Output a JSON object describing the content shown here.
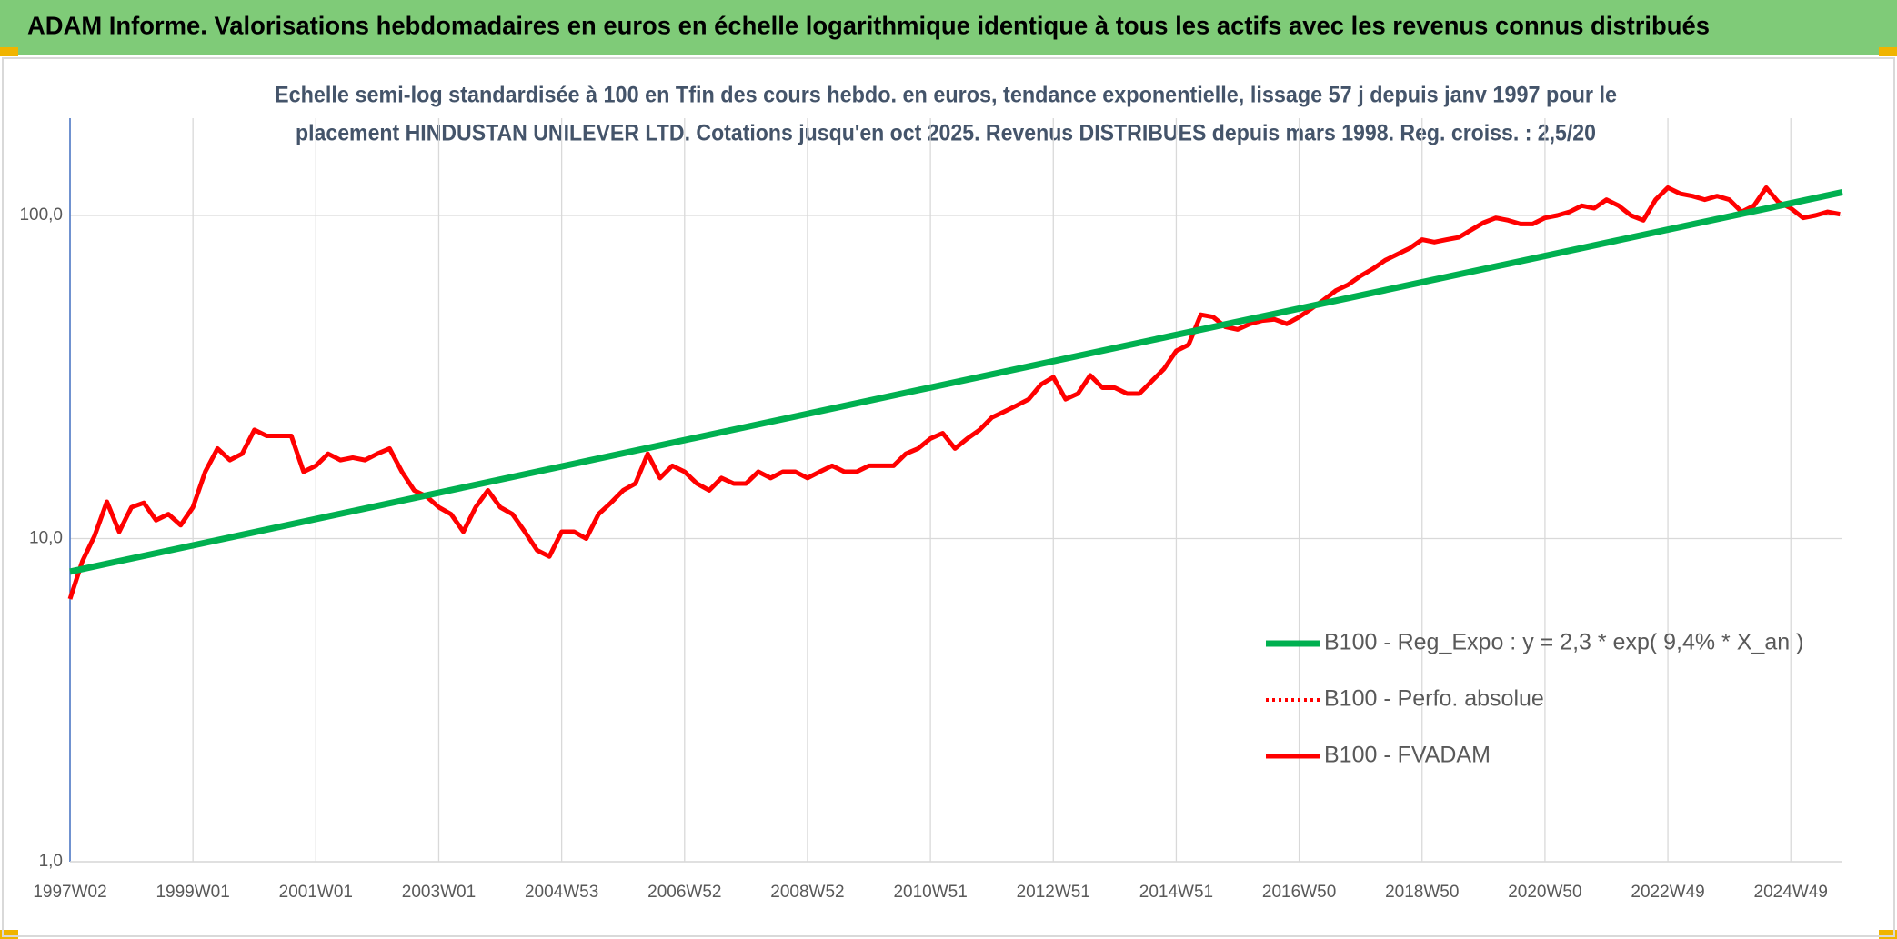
{
  "chart_data": {
    "type": "line",
    "title": "ADAM Informe. Valorisations hebdomadaires en euros en échelle logarithmique identique à tous les actifs avec les revenus connus distribués",
    "subtitle": [
      "Echelle semi-log standardisée à 100 en Tfin des cours hebdo. en euros, tendance exponentielle, lissage 57 j depuis janv 1997 pour le",
      "placement HINDUSTAN UNILEVER LTD. Cotations jusqu'en oct 2025. Revenus DISTRIBUES depuis mars 1998. Reg. croiss. : 2,5/20"
    ],
    "y_scale": "log",
    "ylim": [
      1,
      200
    ],
    "yticks": [
      {
        "value": 1,
        "label": "1,0"
      },
      {
        "value": 10,
        "label": "10,0"
      },
      {
        "value": 100,
        "label": "100,0"
      }
    ],
    "xlim": [
      1997.0,
      2025.84
    ],
    "xticks": [
      {
        "value": 1997.0,
        "label": "1997W02"
      },
      {
        "value": 1999.0,
        "label": "1999W01"
      },
      {
        "value": 2001.0,
        "label": "2001W01"
      },
      {
        "value": 2003.0,
        "label": "2003W01"
      },
      {
        "value": 2005.0,
        "label": "2004W53"
      },
      {
        "value": 2007.0,
        "label": "2006W52"
      },
      {
        "value": 2009.0,
        "label": "2008W52"
      },
      {
        "value": 2011.0,
        "label": "2010W51"
      },
      {
        "value": 2013.0,
        "label": "2012W51"
      },
      {
        "value": 2015.0,
        "label": "2014W51"
      },
      {
        "value": 2017.0,
        "label": "2016W50"
      },
      {
        "value": 2019.0,
        "label": "2018W50"
      },
      {
        "value": 2021.0,
        "label": "2020W50"
      },
      {
        "value": 2023.0,
        "label": "2022W49"
      },
      {
        "value": 2025.0,
        "label": "2024W49"
      }
    ],
    "grid": true,
    "legend_position": "right",
    "series": [
      {
        "name": "B100 - Reg_Expo : y = 2,3 * exp( 9,4% *  X_an )",
        "color": "#00b050",
        "style": "solid",
        "x": [
          1997.0,
          2025.84
        ],
        "values": [
          7.9,
          118
        ]
      },
      {
        "name": "B100 - Perfo. absolue",
        "color": "#ff0000",
        "style": "dotted",
        "x": [],
        "values": []
      },
      {
        "name": "B100 - FVADAM",
        "color": "#ff0000",
        "style": "solid",
        "x": [
          1997,
          1997.2,
          1997.4,
          1997.6,
          1997.8,
          1998,
          1998.2,
          1998.4,
          1998.6,
          1998.8,
          1999,
          1999.2,
          1999.4,
          1999.6,
          1999.8,
          2000,
          2000.2,
          2000.4,
          2000.6,
          2000.8,
          2001,
          2001.2,
          2001.4,
          2001.6,
          2001.8,
          2002,
          2002.2,
          2002.4,
          2002.6,
          2002.8,
          2003,
          2003.2,
          2003.4,
          2003.6,
          2003.8,
          2004,
          2004.2,
          2004.4,
          2004.6,
          2004.8,
          2005,
          2005.2,
          2005.4,
          2005.6,
          2005.8,
          2006,
          2006.2,
          2006.4,
          2006.6,
          2006.8,
          2007,
          2007.2,
          2007.4,
          2007.6,
          2007.8,
          2008,
          2008.2,
          2008.4,
          2008.6,
          2008.8,
          2009,
          2009.2,
          2009.4,
          2009.6,
          2009.8,
          2010,
          2010.2,
          2010.4,
          2010.6,
          2010.8,
          2011,
          2011.2,
          2011.4,
          2011.6,
          2011.8,
          2012,
          2012.2,
          2012.4,
          2012.6,
          2012.8,
          2013,
          2013.2,
          2013.4,
          2013.6,
          2013.8,
          2014,
          2014.2,
          2014.4,
          2014.6,
          2014.8,
          2015,
          2015.2,
          2015.4,
          2015.6,
          2015.8,
          2016,
          2016.2,
          2016.4,
          2016.6,
          2016.8,
          2017,
          2017.2,
          2017.4,
          2017.6,
          2017.8,
          2018,
          2018.2,
          2018.4,
          2018.6,
          2018.8,
          2019,
          2019.2,
          2019.4,
          2019.6,
          2019.8,
          2020,
          2020.2,
          2020.4,
          2020.6,
          2020.8,
          2021,
          2021.2,
          2021.4,
          2021.6,
          2021.8,
          2022,
          2022.2,
          2022.4,
          2022.6,
          2022.8,
          2023,
          2023.2,
          2023.4,
          2023.6,
          2023.8,
          2024,
          2024.2,
          2024.4,
          2024.6,
          2024.8,
          2025,
          2025.2,
          2025.4,
          2025.6,
          2025.8
        ],
        "values": [
          6.5,
          8.5,
          10.2,
          13.0,
          10.5,
          12.5,
          12.9,
          11.4,
          11.9,
          11.0,
          12.5,
          16.1,
          19,
          17.5,
          18.3,
          21.7,
          20.8,
          20.8,
          20.8,
          16.1,
          16.8,
          18.3,
          17.5,
          17.8,
          17.5,
          18.3,
          19,
          16.1,
          14.1,
          13.5,
          12.5,
          11.9,
          10.5,
          12.5,
          14.1,
          12.5,
          11.9,
          10.5,
          9.2,
          8.8,
          10.5,
          10.5,
          10,
          11.9,
          12.9,
          14.1,
          14.8,
          18.3,
          15.4,
          16.8,
          16.1,
          14.8,
          14.1,
          15.4,
          14.8,
          14.8,
          16.1,
          15.4,
          16.1,
          16.1,
          15.4,
          16.1,
          16.8,
          16.1,
          16.1,
          16.8,
          16.8,
          16.8,
          18.3,
          19.0,
          20.4,
          21.2,
          19,
          20.4,
          21.7,
          23.7,
          24.7,
          25.8,
          27,
          30,
          31.6,
          27,
          28.1,
          32,
          29.3,
          29.3,
          28.1,
          28.1,
          30.7,
          33.5,
          38.1,
          39.8,
          49.3,
          48.5,
          45.2,
          44.4,
          46.2,
          47.3,
          47.7,
          46.2,
          48.5,
          51.5,
          54.8,
          58.6,
          61.1,
          65.0,
          68.4,
          72.7,
          75.9,
          79.2,
          84.2,
          82.7,
          84.2,
          85.6,
          90.2,
          95.0,
          98.3,
          96.6,
          94.1,
          94.1,
          98.3,
          100,
          102.6,
          107.2,
          105.3,
          111.9,
          107.2,
          100,
          96.6,
          111.9,
          121.9,
          116.8,
          114.8,
          111.9,
          114.8,
          111.9,
          102.6,
          107.2,
          121.9,
          109.9,
          105.3,
          98.3,
          100,
          102.6,
          100.9
        ]
      }
    ]
  }
}
